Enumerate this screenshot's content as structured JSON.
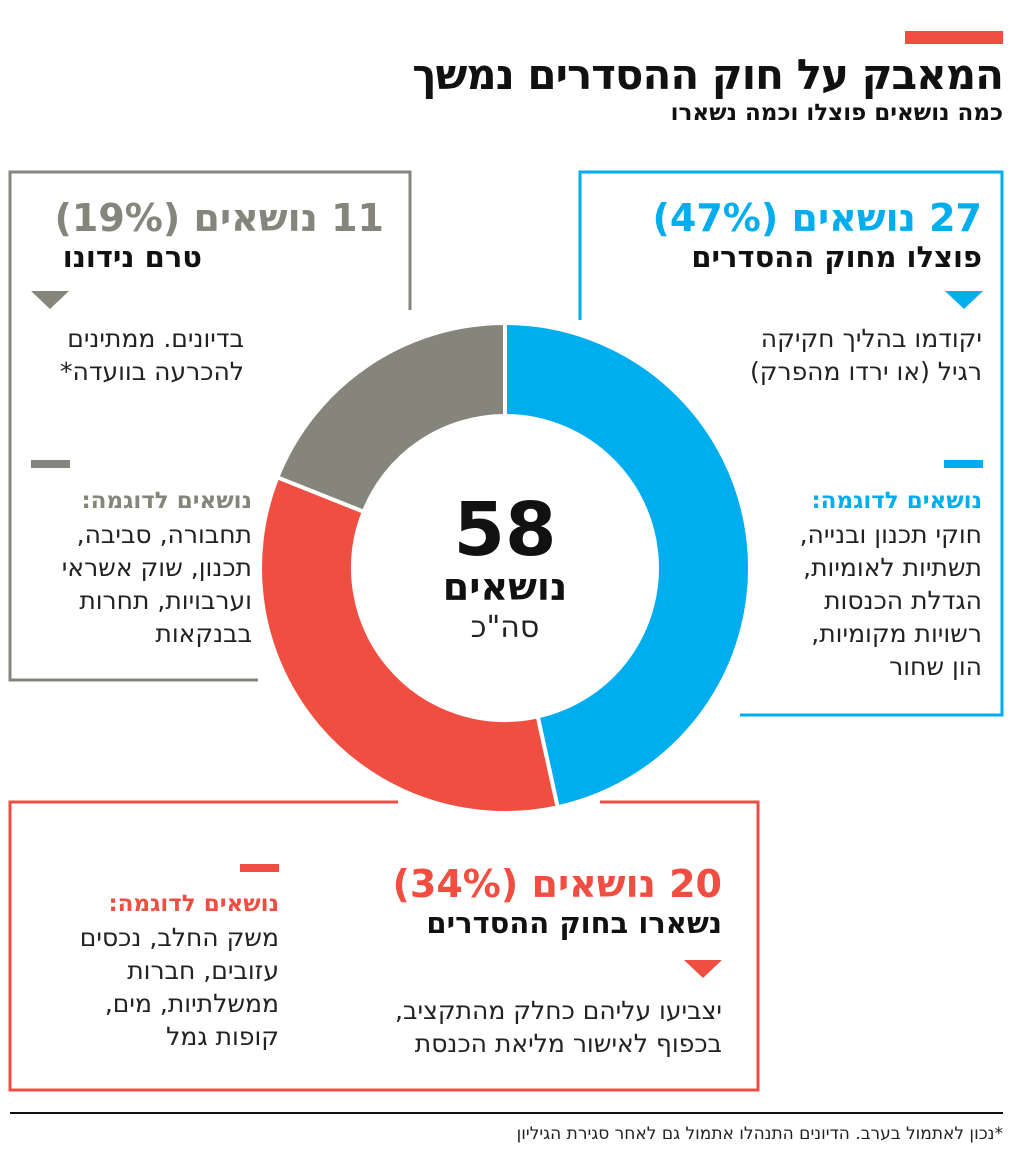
{
  "header": {
    "title": "המאבק על חוק ההסדרים נמשך",
    "subtitle": "כמה נושאים פוצלו וכמה נשארו"
  },
  "center": {
    "total": "58",
    "unit": "נושאים",
    "note": "סה\"כ"
  },
  "groups": {
    "split": {
      "count": "27 נושאים",
      "pct": "(47%)",
      "label": "פוצלו מחוק ההסדרים",
      "desc_1": "יקודמו בהליך חקיקה",
      "desc_2": "רגיל (או ירדו מהפרק)",
      "examples_title": "נושאים לדוגמה:",
      "examples": [
        "חוקי תכנון ובנייה,",
        "תשתיות לאומיות,",
        "הגדלת הכנסות",
        "רשויות מקומיות,",
        "הון שחור"
      ]
    },
    "pending": {
      "count": "11 נושאים",
      "pct": "(19%)",
      "label": "טרם נידונו",
      "desc_1": "בדיונים. ממתינים",
      "desc_2": "להכרעה בוועדה*",
      "examples_title": "נושאים לדוגמה:",
      "examples": [
        "תחבורה, סביבה,",
        "תכנון, שוק אשראי",
        "וערבויות, תחרות",
        "בבנקאות"
      ]
    },
    "remained": {
      "count": "20 נושאים",
      "pct": "(34%)",
      "label": "נשארו בחוק ההסדרים",
      "desc_1": "יצביעו עליהם כחלק מהתקציב,",
      "desc_2": "בכפוף לאישור מליאת הכנסת",
      "examples_title": "נושאים לדוגמה:",
      "examples": [
        "משק החלב, נכסים",
        "עזובים, חברות",
        "ממשלתיות, מים,",
        "קופות גמל"
      ]
    }
  },
  "footnote": "*נכון לאתמול בערב. הדיונים התנהלו אתמול גם לאחר סגירת הגיליון",
  "colors": {
    "blue": "#00aeef",
    "red": "#f04e41",
    "gray": "#85857b",
    "accent": "#f04e41"
  },
  "chart_data": {
    "type": "pie",
    "variant": "donut",
    "total": 58,
    "slices": [
      {
        "label": "פוצלו מחוק ההסדרים",
        "value": 27,
        "percent": 47,
        "color": "#00aeef"
      },
      {
        "label": "נשארו בחוק ההסדרים",
        "value": 20,
        "percent": 34,
        "color": "#f04e41"
      },
      {
        "label": "טרם נידונו",
        "value": 11,
        "percent": 19,
        "color": "#85857b"
      }
    ]
  }
}
